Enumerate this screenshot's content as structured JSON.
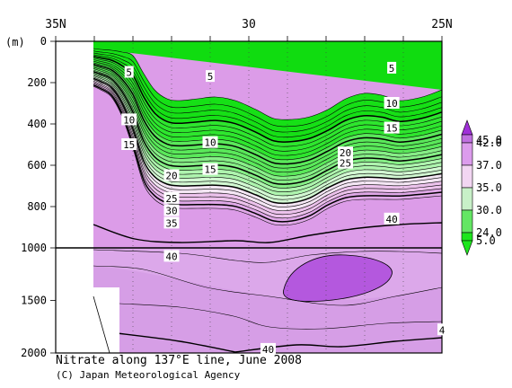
{
  "chart_data": {
    "type": "heatmap",
    "variable": "Nitrate",
    "title": "Nitrate along 137°E line, June 2008",
    "credit": "(C) Japan Meteorological Agency",
    "x_axis": {
      "range_deg_N": [
        35,
        25
      ],
      "reversed": true,
      "ticks": [
        {
          "value": 35,
          "label": "35N"
        },
        {
          "value": 30,
          "label": "30"
        },
        {
          "value": 25,
          "label": "25N"
        }
      ]
    },
    "y_axis": {
      "unit_label": "(m)",
      "range_m": [
        0,
        2000
      ],
      "inverted": true,
      "scale_break_at_m": 1000,
      "ticks": [
        0,
        200,
        400,
        600,
        800,
        1000,
        1500,
        2000
      ]
    },
    "colorbar": {
      "labels": [
        "45.0",
        "42.0",
        "37.0",
        "35.0",
        "30.0",
        "24.0",
        "5.0"
      ],
      "colors": [
        "#a030d8",
        "#c070e0",
        "#dc9cec",
        "#f2d6f2",
        "#c8f0c8",
        "#64e664",
        "#1ee61e"
      ]
    },
    "contour_labels": {
      "upper": [
        {
          "text": "5",
          "x": 33.1,
          "y": 150
        },
        {
          "text": "5",
          "x": 31.0,
          "y": 170
        },
        {
          "text": "5",
          "x": 26.3,
          "y": 130
        },
        {
          "text": "10",
          "x": 33.1,
          "y": 380
        },
        {
          "text": "10",
          "x": 31.0,
          "y": 490
        },
        {
          "text": "10",
          "x": 26.3,
          "y": 300
        },
        {
          "text": "15",
          "x": 33.1,
          "y": 500
        },
        {
          "text": "15",
          "x": 31.0,
          "y": 620
        },
        {
          "text": "15",
          "x": 26.3,
          "y": 420
        },
        {
          "text": "20",
          "x": 32.0,
          "y": 650
        },
        {
          "text": "20",
          "x": 27.5,
          "y": 540
        },
        {
          "text": "25",
          "x": 32.0,
          "y": 760
        },
        {
          "text": "25",
          "x": 27.5,
          "y": 590
        },
        {
          "text": "30",
          "x": 32.0,
          "y": 820
        },
        {
          "text": "35",
          "x": 32.0,
          "y": 880
        },
        {
          "text": "40",
          "x": 26.3,
          "y": 860
        }
      ],
      "lower": [
        {
          "text": "40",
          "x": 32.0,
          "y": 1080
        },
        {
          "text": "40",
          "x": 29.5,
          "y": 1965
        },
        {
          "text": "4",
          "x": 25.0,
          "y": 1780
        }
      ]
    }
  }
}
